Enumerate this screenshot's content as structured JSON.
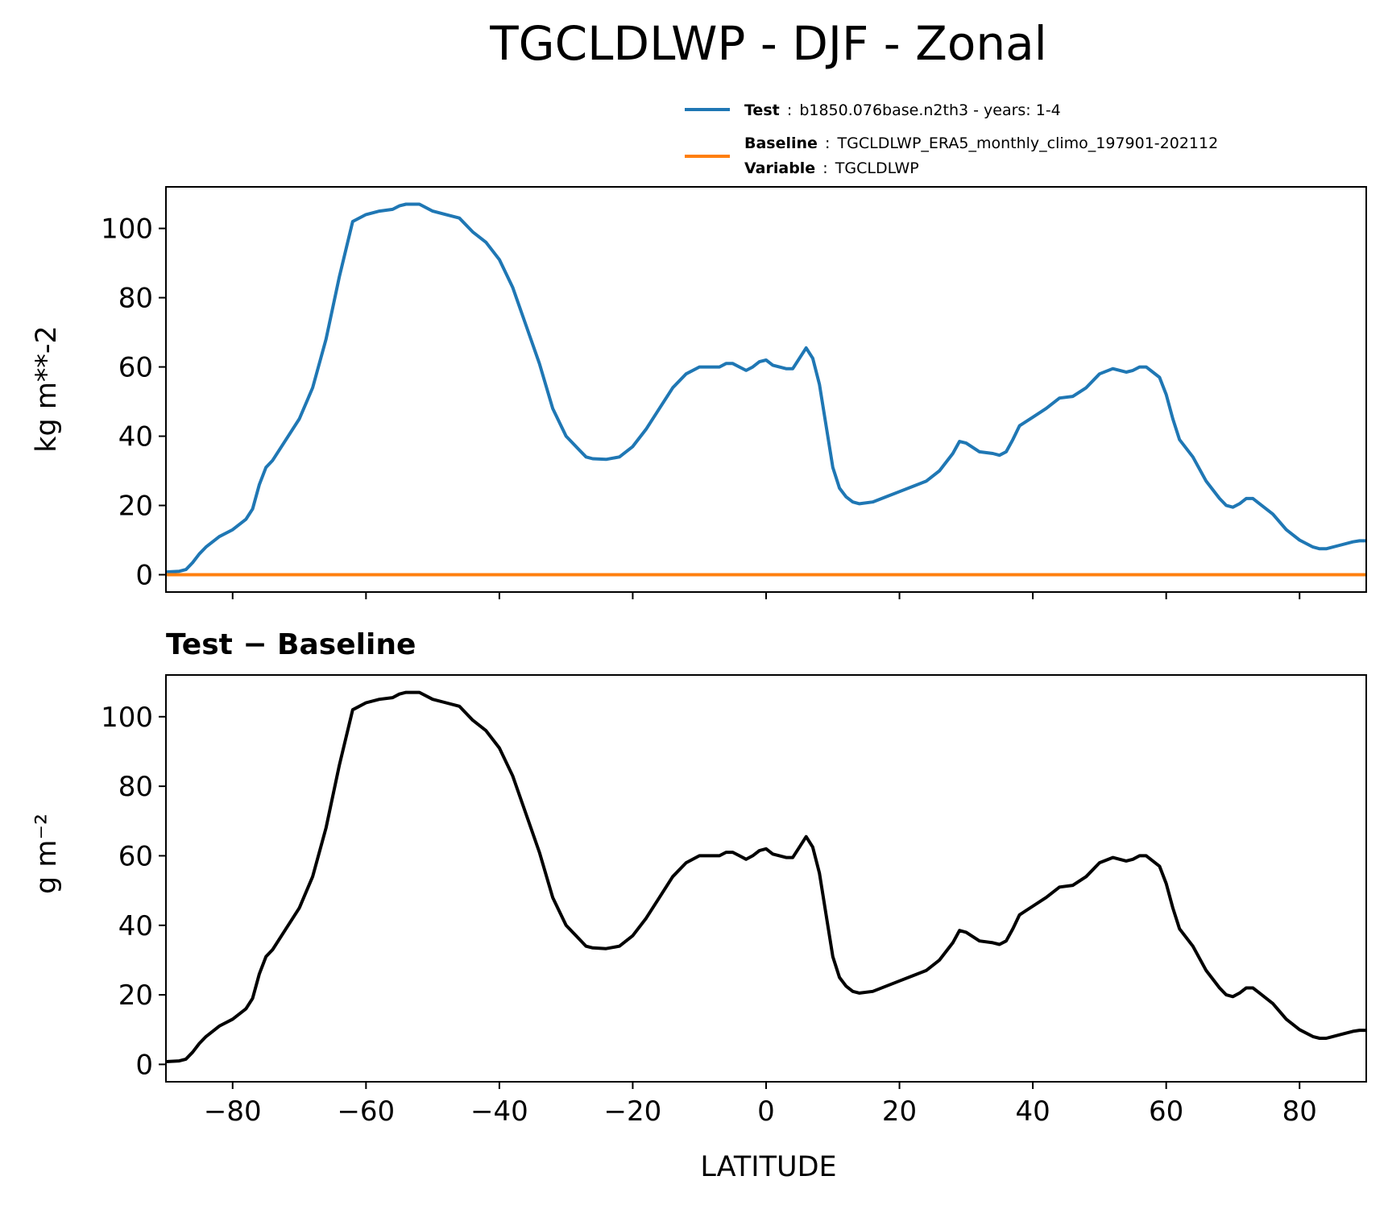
{
  "title": "TGCLDLWP - DJF - Zonal",
  "legend": {
    "test_key": "Test",
    "test_value": "b1850.076base.n2th3 - years: 1-4",
    "baseline_key": "Baseline",
    "baseline_value": "TGCLDLWP_ERA5_monthly_climo_197901-202112",
    "variable_key": "Variable",
    "variable_value": "TGCLDLWP",
    "sep": ":"
  },
  "colors": {
    "test": "#1f77b4",
    "baseline": "#ff7f0e",
    "diff": "#000000"
  },
  "chart_data": [
    {
      "type": "line",
      "title": "",
      "ylabel": "kg m**-2",
      "xlabel": "",
      "xlim": [
        -90,
        90
      ],
      "ylim": [
        -5,
        112
      ],
      "yticks": [
        0,
        20,
        40,
        60,
        80,
        100
      ],
      "xticks": [
        -80,
        -60,
        -40,
        -20,
        0,
        20,
        40,
        60,
        80
      ],
      "show_xtick_labels": false,
      "grid": false,
      "legend_placement": "above",
      "x": [
        -90,
        -88,
        -87,
        -86,
        -85,
        -84,
        -82,
        -80,
        -78,
        -77,
        -76,
        -75,
        -74,
        -72,
        -70,
        -68,
        -66,
        -64,
        -63,
        -62,
        -60,
        -58,
        -56,
        -55,
        -54,
        -52,
        -50,
        -48,
        -46,
        -44,
        -42,
        -40,
        -38,
        -36,
        -34,
        -32,
        -30,
        -28,
        -27,
        -26,
        -24,
        -22,
        -20,
        -18,
        -16,
        -14,
        -12,
        -10,
        -8,
        -7,
        -6,
        -5,
        -4,
        -3,
        -2,
        -1,
        0,
        1,
        2,
        3,
        4,
        5,
        6,
        7,
        8,
        9,
        10,
        11,
        12,
        13,
        14,
        16,
        18,
        20,
        22,
        24,
        26,
        28,
        29,
        30,
        32,
        34,
        35,
        36,
        37,
        38,
        40,
        42,
        44,
        46,
        48,
        50,
        52,
        54,
        55,
        56,
        57,
        58,
        59,
        60,
        61,
        62,
        64,
        66,
        68,
        69,
        70,
        71,
        72,
        73,
        74,
        76,
        78,
        80,
        82,
        83,
        84,
        86,
        88,
        89,
        90
      ],
      "series": [
        {
          "name": "Test",
          "values": [
            0.8,
            1.0,
            1.5,
            3.5,
            6.0,
            8.0,
            11.0,
            13.0,
            16.0,
            19.0,
            26.0,
            31.0,
            33.0,
            39.0,
            45.0,
            54.0,
            68.0,
            86.0,
            94.0,
            102.0,
            104.0,
            105.0,
            105.5,
            106.5,
            107.0,
            107.0,
            105.0,
            104.0,
            103.0,
            99.0,
            96.0,
            91.0,
            83.0,
            72.0,
            61.0,
            48.0,
            40.0,
            36.0,
            34.0,
            33.5,
            33.3,
            34.0,
            37.0,
            42.0,
            48.0,
            54.0,
            58.0,
            60.0,
            60.0,
            60.0,
            61.0,
            61.0,
            60.0,
            59.0,
            60.0,
            61.5,
            62.0,
            60.5,
            60.0,
            59.5,
            59.5,
            62.5,
            65.5,
            62.5,
            55.0,
            43.0,
            31.0,
            25.0,
            22.5,
            21.0,
            20.5,
            21.0,
            22.5,
            24.0,
            25.5,
            27.0,
            30.0,
            35.0,
            38.5,
            38.0,
            35.5,
            35.0,
            34.5,
            35.5,
            39.0,
            43.0,
            45.5,
            48.0,
            51.0,
            51.5,
            54.0,
            58.0,
            59.5,
            58.5,
            59.0,
            60.0,
            60.0,
            58.5,
            57.0,
            52.0,
            45.0,
            39.0,
            34.0,
            27.0,
            22.0,
            20.0,
            19.5,
            20.5,
            22.0,
            22.0,
            20.5,
            17.5,
            13.0,
            10.0,
            8.0,
            7.5,
            7.5,
            8.5,
            9.5,
            9.8,
            9.8
          ]
        },
        {
          "name": "Baseline",
          "values": [
            0.0,
            0.0,
            0.0,
            0.0,
            0.0,
            0.0,
            0.0,
            0.0,
            0.0,
            0.0,
            0.0,
            0.0,
            0.0,
            0.0,
            0.0,
            0.0,
            0.0,
            0.0,
            0.0,
            0.0,
            0.0,
            0.0,
            0.0,
            0.0,
            0.0,
            0.0,
            0.0,
            0.0,
            0.0,
            0.0,
            0.0,
            0.0,
            0.0,
            0.0,
            0.0,
            0.0,
            0.0,
            0.0,
            0.0,
            0.0,
            0.0,
            0.0,
            0.0,
            0.0,
            0.0,
            0.0,
            0.0,
            0.0,
            0.0,
            0.0,
            0.0,
            0.0,
            0.0,
            0.0,
            0.0,
            0.0,
            0.0,
            0.0,
            0.0,
            0.0,
            0.0,
            0.0,
            0.0,
            0.0,
            0.0,
            0.0,
            0.0,
            0.0,
            0.0,
            0.0,
            0.0,
            0.0,
            0.0,
            0.0,
            0.0,
            0.0,
            0.0,
            0.0,
            0.0,
            0.0,
            0.0,
            0.0,
            0.0,
            0.0,
            0.0,
            0.0,
            0.0,
            0.0,
            0.0,
            0.0,
            0.0,
            0.0,
            0.0,
            0.0,
            0.0,
            0.0,
            0.0,
            0.0,
            0.0,
            0.0,
            0.0,
            0.0,
            0.0,
            0.0,
            0.0,
            0.0,
            0.0,
            0.0,
            0.0,
            0.0,
            0.0,
            0.0,
            0.0,
            0.0,
            0.0,
            0.0,
            0.0,
            0.0,
            0.0,
            0.0,
            0.0
          ]
        }
      ]
    },
    {
      "type": "line",
      "title": "Test − Baseline",
      "ylabel": "g m⁻²",
      "xlabel": "LATITUDE",
      "xlim": [
        -90,
        90
      ],
      "ylim": [
        -5,
        112
      ],
      "yticks": [
        0,
        20,
        40,
        60,
        80,
        100
      ],
      "xticks": [
        -80,
        -60,
        -40,
        -20,
        0,
        20,
        40,
        60,
        80
      ],
      "xtick_labels": [
        "−80",
        "−60",
        "−40",
        "−20",
        "0",
        "20",
        "40",
        "60",
        "80"
      ],
      "show_xtick_labels": true,
      "grid": false,
      "x": [
        -90,
        -88,
        -87,
        -86,
        -85,
        -84,
        -82,
        -80,
        -78,
        -77,
        -76,
        -75,
        -74,
        -72,
        -70,
        -68,
        -66,
        -64,
        -63,
        -62,
        -60,
        -58,
        -56,
        -55,
        -54,
        -52,
        -50,
        -48,
        -46,
        -44,
        -42,
        -40,
        -38,
        -36,
        -34,
        -32,
        -30,
        -28,
        -27,
        -26,
        -24,
        -22,
        -20,
        -18,
        -16,
        -14,
        -12,
        -10,
        -8,
        -7,
        -6,
        -5,
        -4,
        -3,
        -2,
        -1,
        0,
        1,
        2,
        3,
        4,
        5,
        6,
        7,
        8,
        9,
        10,
        11,
        12,
        13,
        14,
        16,
        18,
        20,
        22,
        24,
        26,
        28,
        29,
        30,
        32,
        34,
        35,
        36,
        37,
        38,
        40,
        42,
        44,
        46,
        48,
        50,
        52,
        54,
        55,
        56,
        57,
        58,
        59,
        60,
        61,
        62,
        64,
        66,
        68,
        69,
        70,
        71,
        72,
        73,
        74,
        76,
        78,
        80,
        82,
        83,
        84,
        86,
        88,
        89,
        90
      ],
      "series": [
        {
          "name": "",
          "values": [
            0.8,
            1.0,
            1.5,
            3.5,
            6.0,
            8.0,
            11.0,
            13.0,
            16.0,
            19.0,
            26.0,
            31.0,
            33.0,
            39.0,
            45.0,
            54.0,
            68.0,
            86.0,
            94.0,
            102.0,
            104.0,
            105.0,
            105.5,
            106.5,
            107.0,
            107.0,
            105.0,
            104.0,
            103.0,
            99.0,
            96.0,
            91.0,
            83.0,
            72.0,
            61.0,
            48.0,
            40.0,
            36.0,
            34.0,
            33.5,
            33.3,
            34.0,
            37.0,
            42.0,
            48.0,
            54.0,
            58.0,
            60.0,
            60.0,
            60.0,
            61.0,
            61.0,
            60.0,
            59.0,
            60.0,
            61.5,
            62.0,
            60.5,
            60.0,
            59.5,
            59.5,
            62.5,
            65.5,
            62.5,
            55.0,
            43.0,
            31.0,
            25.0,
            22.5,
            21.0,
            20.5,
            21.0,
            22.5,
            24.0,
            25.5,
            27.0,
            30.0,
            35.0,
            38.5,
            38.0,
            35.5,
            35.0,
            34.5,
            35.5,
            39.0,
            43.0,
            45.5,
            48.0,
            51.0,
            51.5,
            54.0,
            58.0,
            59.5,
            58.5,
            59.0,
            60.0,
            60.0,
            58.5,
            57.0,
            52.0,
            45.0,
            39.0,
            34.0,
            27.0,
            22.0,
            20.0,
            19.5,
            20.5,
            22.0,
            22.0,
            20.5,
            17.5,
            13.0,
            10.0,
            8.0,
            7.5,
            7.5,
            8.5,
            9.5,
            9.8,
            9.8
          ]
        }
      ]
    }
  ]
}
